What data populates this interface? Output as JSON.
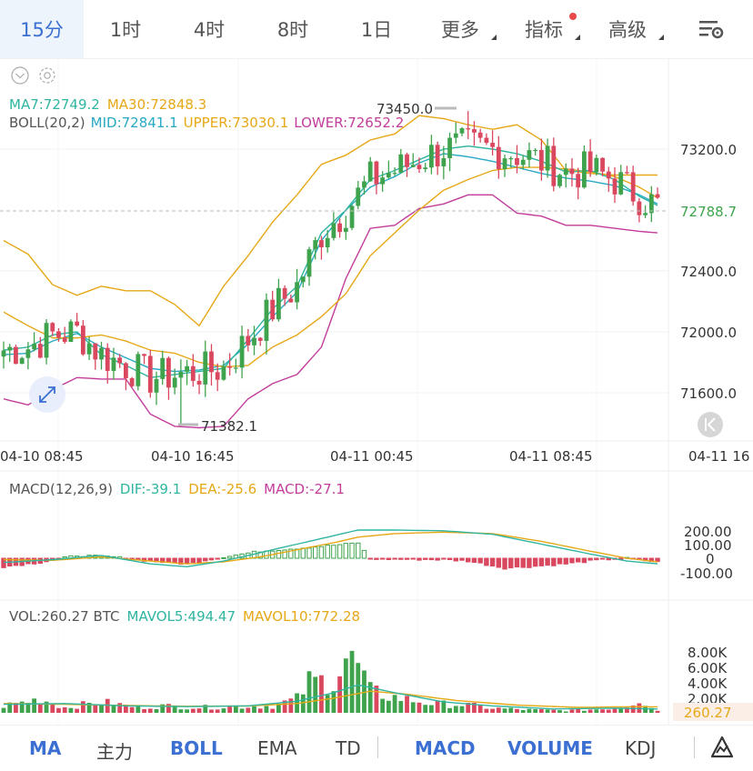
{
  "tabs": [
    {
      "label": "15分",
      "active": true,
      "dropdown": false
    },
    {
      "label": "1时",
      "active": false,
      "dropdown": false
    },
    {
      "label": "4时",
      "active": false,
      "dropdown": false
    },
    {
      "label": "8时",
      "active": false,
      "dropdown": false
    },
    {
      "label": "1日",
      "active": false,
      "dropdown": false
    },
    {
      "label": "更多",
      "active": false,
      "dropdown": true
    },
    {
      "label": "指标",
      "active": false,
      "dropdown": true,
      "badge": true
    },
    {
      "label": "高级",
      "active": false,
      "dropdown": true
    }
  ],
  "settings_icon": "chart-settings-icon",
  "legend": {
    "ma7": "MA7:72749.2",
    "ma30": "MA30:72848.3",
    "boll": "BOLL(20,2)",
    "mid": "MID:72841.1",
    "upper": "UPPER:73030.1",
    "lower": "LOWER:72652.2"
  },
  "macd_legend": {
    "title": "MACD(12,26,9)",
    "dif": "DIF:-39.1",
    "dea": "DEA:-25.6",
    "macd": "MACD:-27.1"
  },
  "vol_legend": {
    "vol": "VOL:260.27 BTC",
    "mavol5": "MAVOL5:494.47",
    "mavol10": "MAVOL10:772.28"
  },
  "colors": {
    "up": "#3fa34d",
    "down": "#d9485f",
    "ma7": "#2fb5a0",
    "ma30": "#e6a817",
    "boll_mid": "#29a9c4",
    "boll_upper": "#e6a817",
    "boll_lower": "#c23d9b",
    "accent": "#3b6fd1"
  },
  "bottom_indicators": [
    {
      "label": "MA",
      "active": true
    },
    {
      "label": "主力",
      "active": false
    },
    {
      "label": "BOLL",
      "active": true
    },
    {
      "label": "EMA",
      "active": false
    },
    {
      "label": "TD",
      "active": false
    },
    {
      "label": "MACD",
      "active": true
    },
    {
      "label": "VOLUME",
      "active": true
    },
    {
      "label": "KDJ",
      "active": false
    }
  ],
  "draw_icon": "draw-tool-icon",
  "chart_data": [
    {
      "type": "candlestick",
      "ylim": [
        71280,
        73640
      ],
      "y_ticks": [
        "73200.0",
        "72400.0",
        "72000.0",
        "71600.0"
      ],
      "current_price": "72788.7",
      "high_label": "73450.0",
      "low_label": "71382.1",
      "x_ticks": [
        "04-10 08:45",
        "04-10 16:45",
        "04-11 00:45",
        "04-11 08:45",
        "04-11 16"
      ],
      "series_anchors": {
        "ma7": [
          [
            0,
            71880
          ],
          [
            4,
            71900
          ],
          [
            8,
            71980
          ],
          [
            12,
            72000
          ],
          [
            16,
            71850
          ],
          [
            20,
            71780
          ],
          [
            24,
            71700
          ],
          [
            28,
            71720
          ],
          [
            32,
            71740
          ],
          [
            36,
            71760
          ],
          [
            40,
            71950
          ],
          [
            44,
            72150
          ],
          [
            48,
            72300
          ],
          [
            52,
            72650
          ],
          [
            56,
            72800
          ],
          [
            60,
            73000
          ],
          [
            64,
            73060
          ],
          [
            68,
            73130
          ],
          [
            72,
            73200
          ],
          [
            76,
            73220
          ],
          [
            80,
            73200
          ],
          [
            84,
            73170
          ],
          [
            88,
            73120
          ],
          [
            92,
            73050
          ],
          [
            96,
            73060
          ],
          [
            100,
            73000
          ],
          [
            104,
            72890
          ],
          [
            107,
            72830
          ]
        ],
        "ma30": [
          [
            0,
            72130
          ],
          [
            4,
            72040
          ],
          [
            8,
            71960
          ],
          [
            12,
            71960
          ],
          [
            16,
            71980
          ],
          [
            20,
            71940
          ],
          [
            24,
            71880
          ],
          [
            28,
            71860
          ],
          [
            32,
            71800
          ],
          [
            36,
            71770
          ],
          [
            40,
            71780
          ],
          [
            44,
            71900
          ],
          [
            48,
            71980
          ],
          [
            52,
            72100
          ],
          [
            56,
            72250
          ],
          [
            60,
            72500
          ],
          [
            64,
            72650
          ],
          [
            68,
            72800
          ],
          [
            72,
            72930
          ],
          [
            76,
            73000
          ],
          [
            80,
            73060
          ],
          [
            84,
            73080
          ],
          [
            88,
            73080
          ],
          [
            92,
            73070
          ],
          [
            96,
            73050
          ],
          [
            100,
            73020
          ],
          [
            104,
            72950
          ],
          [
            107,
            72880
          ]
        ],
        "boll_mid": [
          [
            0,
            71850
          ],
          [
            4,
            71860
          ],
          [
            8,
            71940
          ],
          [
            12,
            71990
          ],
          [
            16,
            71900
          ],
          [
            20,
            71830
          ],
          [
            24,
            71760
          ],
          [
            28,
            71740
          ],
          [
            32,
            71750
          ],
          [
            36,
            71780
          ],
          [
            40,
            71920
          ],
          [
            44,
            72100
          ],
          [
            48,
            72260
          ],
          [
            52,
            72600
          ],
          [
            56,
            72800
          ],
          [
            60,
            72950
          ],
          [
            64,
            73020
          ],
          [
            68,
            73110
          ],
          [
            72,
            73170
          ],
          [
            76,
            73150
          ],
          [
            80,
            73120
          ],
          [
            84,
            73080
          ],
          [
            88,
            73040
          ],
          [
            92,
            73010
          ],
          [
            96,
            72990
          ],
          [
            100,
            72960
          ],
          [
            104,
            72900
          ],
          [
            107,
            72840
          ]
        ],
        "boll_upper": [
          [
            0,
            72600
          ],
          [
            4,
            72510
          ],
          [
            8,
            72310
          ],
          [
            12,
            72240
          ],
          [
            16,
            72300
          ],
          [
            20,
            72270
          ],
          [
            24,
            72270
          ],
          [
            28,
            72180
          ],
          [
            32,
            72040
          ],
          [
            36,
            72300
          ],
          [
            40,
            72500
          ],
          [
            44,
            72720
          ],
          [
            48,
            72900
          ],
          [
            52,
            73100
          ],
          [
            56,
            73160
          ],
          [
            60,
            73260
          ],
          [
            64,
            73300
          ],
          [
            68,
            73420
          ],
          [
            72,
            73400
          ],
          [
            76,
            73360
          ],
          [
            80,
            73330
          ],
          [
            84,
            73360
          ],
          [
            88,
            73260
          ],
          [
            92,
            73060
          ],
          [
            96,
            73040
          ],
          [
            100,
            73030
          ],
          [
            104,
            73030
          ],
          [
            107,
            73030
          ]
        ],
        "boll_lower": [
          [
            0,
            71560
          ],
          [
            4,
            71520
          ],
          [
            8,
            71620
          ],
          [
            12,
            71700
          ],
          [
            16,
            71690
          ],
          [
            20,
            71690
          ],
          [
            24,
            71460
          ],
          [
            28,
            71380
          ],
          [
            32,
            71370
          ],
          [
            36,
            71380
          ],
          [
            40,
            71560
          ],
          [
            44,
            71660
          ],
          [
            48,
            71720
          ],
          [
            52,
            71900
          ],
          [
            56,
            72350
          ],
          [
            60,
            72680
          ],
          [
            64,
            72700
          ],
          [
            68,
            72810
          ],
          [
            72,
            72840
          ],
          [
            76,
            72900
          ],
          [
            80,
            72900
          ],
          [
            84,
            72780
          ],
          [
            88,
            72760
          ],
          [
            92,
            72700
          ],
          [
            96,
            72700
          ],
          [
            100,
            72680
          ],
          [
            104,
            72660
          ],
          [
            107,
            72650
          ]
        ]
      }
    },
    {
      "type": "bar",
      "title": "MACD(12,26,9)",
      "y_ticks": [
        "200.00",
        "100.00",
        "0",
        "-100.00"
      ],
      "ylim": [
        -200,
        330
      ],
      "dif_anchors": [
        [
          0,
          -30
        ],
        [
          8,
          -10
        ],
        [
          16,
          20
        ],
        [
          24,
          -40
        ],
        [
          30,
          -60
        ],
        [
          36,
          -20
        ],
        [
          42,
          40
        ],
        [
          48,
          100
        ],
        [
          54,
          160
        ],
        [
          58,
          200
        ],
        [
          64,
          200
        ],
        [
          72,
          195
        ],
        [
          80,
          170
        ],
        [
          88,
          100
        ],
        [
          96,
          30
        ],
        [
          102,
          -20
        ],
        [
          107,
          -39.1
        ]
      ],
      "dea_anchors": [
        [
          0,
          -10
        ],
        [
          8,
          -15
        ],
        [
          16,
          10
        ],
        [
          24,
          -20
        ],
        [
          30,
          -40
        ],
        [
          36,
          -25
        ],
        [
          42,
          10
        ],
        [
          48,
          60
        ],
        [
          54,
          110
        ],
        [
          58,
          150
        ],
        [
          64,
          175
        ],
        [
          72,
          185
        ],
        [
          80,
          175
        ],
        [
          88,
          120
        ],
        [
          96,
          50
        ],
        [
          102,
          0
        ],
        [
          107,
          -25.6
        ]
      ],
      "hist_anchors": [
        [
          0,
          -60
        ],
        [
          6,
          -30
        ],
        [
          12,
          20
        ],
        [
          18,
          10
        ],
        [
          24,
          -20
        ],
        [
          30,
          -40
        ],
        [
          36,
          10
        ],
        [
          42,
          50
        ],
        [
          48,
          70
        ],
        [
          56,
          100
        ],
        [
          58,
          110
        ],
        [
          60,
          -5
        ],
        [
          72,
          -10
        ],
        [
          76,
          -20
        ],
        [
          82,
          -70
        ],
        [
          86,
          -60
        ],
        [
          92,
          -40
        ],
        [
          98,
          -10
        ],
        [
          102,
          0
        ],
        [
          107,
          -27.1
        ]
      ]
    },
    {
      "type": "bar",
      "title": "VOL",
      "unit": "BTC",
      "y_ticks": [
        "8.00K",
        "6.00K",
        "4.00K",
        "2.00K"
      ],
      "ylim": [
        0,
        9000
      ],
      "current_volume": "260.27",
      "vol_anchors": [
        [
          0,
          900
        ],
        [
          6,
          1800
        ],
        [
          10,
          700
        ],
        [
          16,
          1400
        ],
        [
          22,
          700
        ],
        [
          26,
          900
        ],
        [
          32,
          700
        ],
        [
          38,
          800
        ],
        [
          44,
          900
        ],
        [
          48,
          1800
        ],
        [
          50,
          4000
        ],
        [
          54,
          4200
        ],
        [
          56,
          7000
        ],
        [
          58,
          6000
        ],
        [
          60,
          2800
        ],
        [
          64,
          2000
        ],
        [
          70,
          1200
        ],
        [
          76,
          1000
        ],
        [
          80,
          600
        ],
        [
          86,
          400
        ],
        [
          92,
          300
        ],
        [
          98,
          500
        ],
        [
          102,
          900
        ],
        [
          104,
          1800
        ],
        [
          107,
          260
        ]
      ],
      "mavol5_anchors": [
        [
          0,
          1100
        ],
        [
          10,
          1200
        ],
        [
          20,
          900
        ],
        [
          30,
          800
        ],
        [
          40,
          900
        ],
        [
          48,
          1500
        ],
        [
          54,
          2600
        ],
        [
          58,
          3600
        ],
        [
          64,
          2600
        ],
        [
          72,
          1400
        ],
        [
          80,
          900
        ],
        [
          90,
          500
        ],
        [
          100,
          600
        ],
        [
          107,
          494
        ]
      ],
      "mavol10_anchors": [
        [
          0,
          1200
        ],
        [
          10,
          1100
        ],
        [
          20,
          950
        ],
        [
          30,
          850
        ],
        [
          40,
          880
        ],
        [
          48,
          1200
        ],
        [
          54,
          1900
        ],
        [
          60,
          2800
        ],
        [
          66,
          2400
        ],
        [
          74,
          1600
        ],
        [
          84,
          1000
        ],
        [
          94,
          700
        ],
        [
          104,
          800
        ],
        [
          107,
          772
        ]
      ]
    }
  ]
}
